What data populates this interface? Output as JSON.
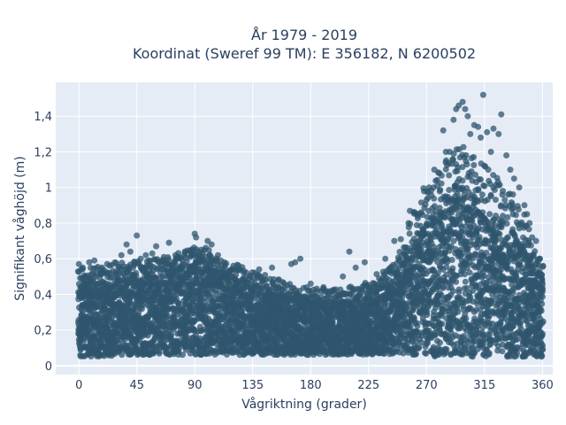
{
  "chart_data": {
    "type": "scatter",
    "title_line1": "År 1979 - 2019",
    "title_line2": "Koordinat (Sweref 99 TM): E 356182, N 6200502",
    "xlabel": "Vågriktning (grader)",
    "ylabel": "Signifikant våghöjd (m)",
    "xlim": [
      -18,
      368
    ],
    "ylim": [
      -0.05,
      1.59
    ],
    "x_ticks": [
      0,
      45,
      90,
      135,
      180,
      225,
      270,
      315,
      360
    ],
    "y_ticks": [
      0,
      0.2,
      0.4,
      0.6,
      0.8,
      1,
      1.2,
      1.4
    ],
    "y_tick_labels": [
      "0",
      "0,2",
      "0,4",
      "0,6",
      "0,8",
      "1",
      "1,2",
      "1,4"
    ],
    "marker_color": "#2f556e",
    "background_color": "#e5ecf6",
    "grid": true,
    "envelope": {
      "x": [
        0,
        10,
        20,
        30,
        40,
        45,
        55,
        65,
        75,
        85,
        92,
        100,
        110,
        120,
        135,
        150,
        165,
        180,
        195,
        210,
        225,
        235,
        245,
        255,
        262,
        270,
        278,
        285,
        292,
        298,
        305,
        312,
        320,
        330,
        340,
        350,
        360
      ],
      "min": [
        0.05,
        0.05,
        0.05,
        0.06,
        0.06,
        0.06,
        0.06,
        0.06,
        0.06,
        0.06,
        0.06,
        0.06,
        0.06,
        0.06,
        0.06,
        0.06,
        0.06,
        0.06,
        0.06,
        0.06,
        0.06,
        0.06,
        0.06,
        0.06,
        0.06,
        0.06,
        0.05,
        0.05,
        0.05,
        0.05,
        0.05,
        0.05,
        0.05,
        0.05,
        0.05,
        0.05,
        0.05
      ],
      "max": [
        0.46,
        0.48,
        0.47,
        0.5,
        0.5,
        0.52,
        0.52,
        0.52,
        0.55,
        0.57,
        0.6,
        0.58,
        0.52,
        0.5,
        0.45,
        0.42,
        0.38,
        0.36,
        0.36,
        0.36,
        0.4,
        0.45,
        0.5,
        0.62,
        0.72,
        0.8,
        0.88,
        0.95,
        1.02,
        1.05,
        0.98,
        0.92,
        0.88,
        0.82,
        0.75,
        0.62,
        0.5
      ]
    },
    "outliers": [
      [
        0,
        0.57
      ],
      [
        3,
        0.55
      ],
      [
        8,
        0.58
      ],
      [
        12,
        0.59
      ],
      [
        18,
        0.55
      ],
      [
        22,
        0.57
      ],
      [
        28,
        0.58
      ],
      [
        33,
        0.62
      ],
      [
        37,
        0.68
      ],
      [
        40,
        0.64
      ],
      [
        45,
        0.73
      ],
      [
        48,
        0.6
      ],
      [
        52,
        0.62
      ],
      [
        57,
        0.63
      ],
      [
        60,
        0.67
      ],
      [
        66,
        0.61
      ],
      [
        70,
        0.69
      ],
      [
        75,
        0.62
      ],
      [
        82,
        0.62
      ],
      [
        87,
        0.65
      ],
      [
        90,
        0.74
      ],
      [
        91,
        0.72
      ],
      [
        95,
        0.65
      ],
      [
        100,
        0.7
      ],
      [
        103,
        0.68
      ],
      [
        108,
        0.62
      ],
      [
        113,
        0.58
      ],
      [
        120,
        0.56
      ],
      [
        128,
        0.52
      ],
      [
        140,
        0.54
      ],
      [
        150,
        0.55
      ],
      [
        165,
        0.57
      ],
      [
        168,
        0.58
      ],
      [
        172,
        0.6
      ],
      [
        180,
        0.46
      ],
      [
        190,
        0.44
      ],
      [
        205,
        0.5
      ],
      [
        210,
        0.64
      ],
      [
        215,
        0.55
      ],
      [
        222,
        0.58
      ],
      [
        238,
        0.6
      ],
      [
        245,
        0.7
      ],
      [
        250,
        0.71
      ],
      [
        256,
        0.8
      ],
      [
        262,
        0.85
      ],
      [
        266,
        0.86
      ],
      [
        270,
        0.93
      ],
      [
        272,
        1.0
      ],
      [
        276,
        1.1
      ],
      [
        280,
        1.08
      ],
      [
        283,
        1.32
      ],
      [
        285,
        1.2
      ],
      [
        288,
        1.2
      ],
      [
        291,
        1.38
      ],
      [
        293,
        1.44
      ],
      [
        295,
        1.46
      ],
      [
        298,
        1.48
      ],
      [
        300,
        1.44
      ],
      [
        302,
        1.4
      ],
      [
        304,
        1.3
      ],
      [
        307,
        1.35
      ],
      [
        310,
        1.34
      ],
      [
        312,
        1.28
      ],
      [
        314,
        1.52
      ],
      [
        317,
        1.31
      ],
      [
        320,
        1.2
      ],
      [
        322,
        1.33
      ],
      [
        326,
        1.3
      ],
      [
        328,
        1.41
      ],
      [
        332,
        1.18
      ],
      [
        335,
        1.1
      ],
      [
        338,
        1.05
      ],
      [
        342,
        1.0
      ],
      [
        346,
        0.9
      ],
      [
        348,
        0.85
      ],
      [
        350,
        0.8
      ],
      [
        352,
        0.72
      ],
      [
        355,
        0.7
      ],
      [
        358,
        0.6
      ]
    ]
  }
}
